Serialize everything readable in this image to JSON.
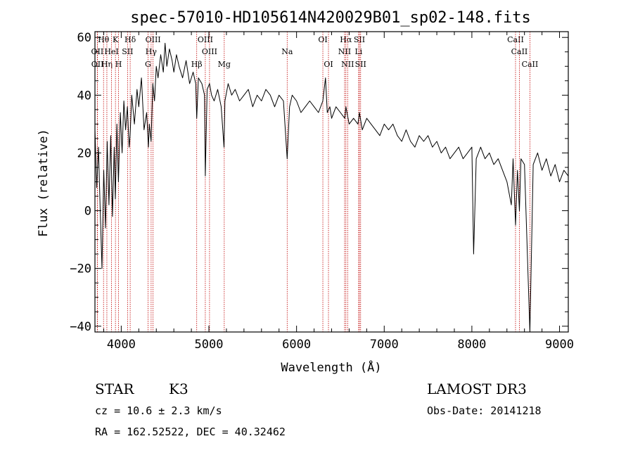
{
  "chart_data": {
    "type": "line",
    "title": "spec-57010-HD105614N420029B01_sp02-148.fits",
    "xlabel": "Wavelength (Å)",
    "ylabel": "Flux (relative)",
    "xlim": [
      3700,
      9100
    ],
    "ylim": [
      -42,
      62
    ],
    "xticks": [
      4000,
      5000,
      6000,
      7000,
      8000,
      9000
    ],
    "yticks": [
      -40,
      -20,
      0,
      20,
      40,
      60
    ],
    "series": [
      {
        "name": "flux",
        "x": [
          3700,
          3720,
          3740,
          3760,
          3780,
          3800,
          3820,
          3840,
          3860,
          3880,
          3900,
          3920,
          3933,
          3950,
          3968,
          3990,
          4010,
          4030,
          4050,
          4070,
          4090,
          4101,
          4120,
          4150,
          4180,
          4200,
          4230,
          4260,
          4290,
          4310,
          4320,
          4340,
          4360,
          4380,
          4400,
          4420,
          4450,
          4480,
          4500,
          4520,
          4550,
          4580,
          4600,
          4630,
          4660,
          4700,
          4740,
          4780,
          4820,
          4850,
          4861,
          4880,
          4920,
          4950,
          4959,
          4980,
          5007,
          5030,
          5060,
          5100,
          5140,
          5172,
          5183,
          5220,
          5260,
          5300,
          5350,
          5400,
          5450,
          5500,
          5550,
          5600,
          5650,
          5700,
          5750,
          5800,
          5850,
          5893,
          5920,
          5950,
          6000,
          6050,
          6100,
          6150,
          6200,
          6250,
          6300,
          6330,
          6350,
          6380,
          6400,
          6450,
          6500,
          6550,
          6563,
          6600,
          6650,
          6700,
          6717,
          6750,
          6800,
          6850,
          6900,
          6950,
          7000,
          7050,
          7100,
          7150,
          7200,
          7250,
          7300,
          7350,
          7400,
          7450,
          7500,
          7550,
          7600,
          7650,
          7700,
          7750,
          7800,
          7850,
          7900,
          7950,
          8000,
          8020,
          8050,
          8100,
          8150,
          8200,
          8250,
          8300,
          8350,
          8400,
          8450,
          8470,
          8498,
          8520,
          8542,
          8560,
          8600,
          8662,
          8700,
          8750,
          8800,
          8850,
          8900,
          8950,
          9000,
          9050,
          9100
        ],
        "y": [
          28,
          8,
          22,
          0,
          -20,
          14,
          -6,
          24,
          2,
          26,
          -2,
          22,
          4,
          30,
          10,
          34,
          20,
          38,
          28,
          36,
          22,
          26,
          40,
          30,
          42,
          36,
          46,
          28,
          34,
          22,
          30,
          24,
          44,
          38,
          50,
          46,
          54,
          48,
          58,
          50,
          56,
          52,
          48,
          54,
          50,
          46,
          52,
          44,
          48,
          44,
          32,
          46,
          44,
          40,
          12,
          42,
          44,
          40,
          38,
          42,
          36,
          22,
          38,
          44,
          40,
          42,
          38,
          40,
          42,
          36,
          40,
          38,
          42,
          40,
          36,
          40,
          38,
          18,
          36,
          40,
          38,
          34,
          36,
          38,
          36,
          34,
          38,
          46,
          34,
          36,
          32,
          36,
          34,
          32,
          36,
          30,
          32,
          30,
          34,
          28,
          32,
          30,
          28,
          26,
          30,
          28,
          30,
          26,
          24,
          28,
          24,
          22,
          26,
          24,
          26,
          22,
          24,
          20,
          22,
          18,
          20,
          22,
          18,
          20,
          22,
          -15,
          18,
          22,
          18,
          20,
          16,
          18,
          14,
          10,
          2,
          18,
          -5,
          14,
          0,
          18,
          16,
          -42,
          16,
          20,
          14,
          18,
          12,
          16,
          10,
          14,
          12
        ]
      }
    ],
    "spectral_lines": [
      {
        "label": "Hθ",
        "wavelength": 3798,
        "row": 0
      },
      {
        "label": "OII",
        "wavelength": 3727,
        "row": 1
      },
      {
        "label": "OII",
        "wavelength": 3729,
        "row": 2
      },
      {
        "label": "Hη",
        "wavelength": 3836,
        "row": 2
      },
      {
        "label": "HeI",
        "wavelength": 3889,
        "row": 1
      },
      {
        "label": "K",
        "wavelength": 3934,
        "row": 0
      },
      {
        "label": "H",
        "wavelength": 3969,
        "row": 2
      },
      {
        "label": "SII",
        "wavelength": 4072,
        "row": 1
      },
      {
        "label": "Hδ",
        "wavelength": 4102,
        "row": 0
      },
      {
        "label": "OIII",
        "wavelength": 4363,
        "row": 0
      },
      {
        "label": "Hγ",
        "wavelength": 4341,
        "row": 1
      },
      {
        "label": "G",
        "wavelength": 4305,
        "row": 2
      },
      {
        "label": "Hβ",
        "wavelength": 4861,
        "row": 2
      },
      {
        "label": "OIII",
        "wavelength": 4959,
        "row": 0
      },
      {
        "label": "OIII",
        "wavelength": 5007,
        "row": 1
      },
      {
        "label": "Mg",
        "wavelength": 5175,
        "row": 2
      },
      {
        "label": "Na",
        "wavelength": 5893,
        "row": 1
      },
      {
        "label": "OI",
        "wavelength": 6300,
        "row": 0
      },
      {
        "label": "OI",
        "wavelength": 6364,
        "row": 2
      },
      {
        "label": "Hα",
        "wavelength": 6563,
        "row": 0
      },
      {
        "label": "NII",
        "wavelength": 6548,
        "row": 1
      },
      {
        "label": "NII",
        "wavelength": 6583,
        "row": 2
      },
      {
        "label": "SII",
        "wavelength": 6717,
        "row": 0
      },
      {
        "label": "Li",
        "wavelength": 6708,
        "row": 1
      },
      {
        "label": "SII",
        "wavelength": 6731,
        "row": 2
      },
      {
        "label": "CaII",
        "wavelength": 8498,
        "row": 0
      },
      {
        "label": "CaII",
        "wavelength": 8542,
        "row": 1
      },
      {
        "label": "CaII",
        "wavelength": 8662,
        "row": 2
      }
    ]
  },
  "info": {
    "class": "STAR",
    "subclass": "K3",
    "survey": "LAMOST DR3",
    "cz_line": "cz = 10.6 ± 2.3 km/s",
    "obs_date_line": "Obs-Date: 20141218",
    "radec_line": "RA = 162.52522, DEC =  40.32462"
  },
  "colors": {
    "spectrum": "#000000",
    "line_markers": "#c00000",
    "axes": "#000000"
  }
}
